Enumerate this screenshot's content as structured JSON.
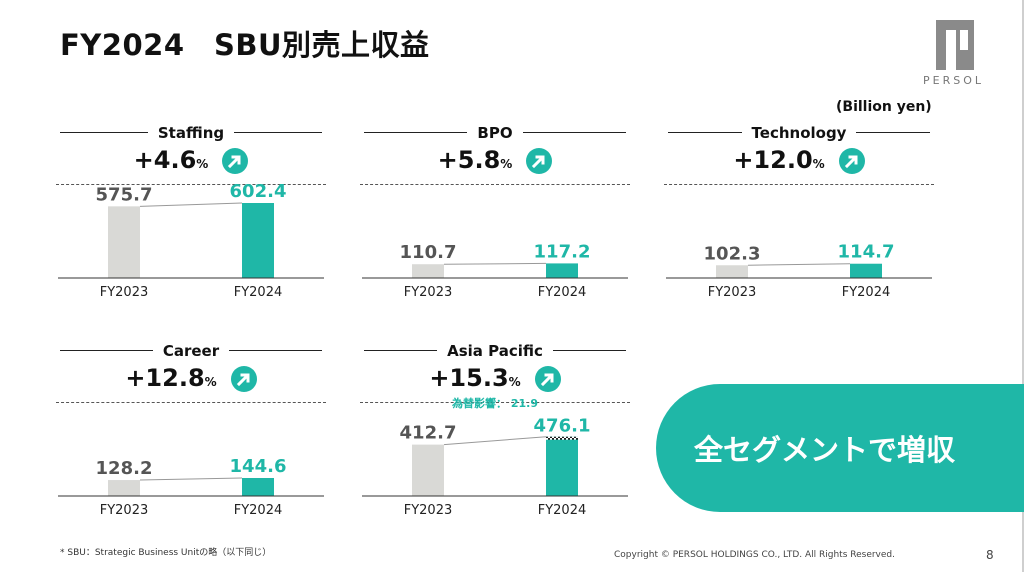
{
  "header": {
    "title": "FY2024　SBU別売上収益",
    "logo_text": "PERSOL",
    "unit": "(Billion yen)"
  },
  "colors": {
    "accent": "#1fb7a7",
    "prev_bar": "#d9d9d6",
    "text": "#111111"
  },
  "chart_data": [
    {
      "type": "bar",
      "title": "Staffing",
      "growth_value": "+4.6",
      "growth_unit": "%",
      "categories": [
        "FY2023",
        "FY2024"
      ],
      "values": [
        575.7,
        602.4
      ],
      "value_labels": [
        "575.7",
        "602.4"
      ],
      "ylim": [
        0,
        602.4
      ],
      "icon": "up-right-arrow-icon"
    },
    {
      "type": "bar",
      "title": "BPO",
      "growth_value": "+5.8",
      "growth_unit": "%",
      "categories": [
        "FY2023",
        "FY2024"
      ],
      "values": [
        110.7,
        117.2
      ],
      "value_labels": [
        "110.7",
        "117.2"
      ],
      "ylim": [
        0,
        602.4
      ],
      "icon": "up-right-arrow-icon"
    },
    {
      "type": "bar",
      "title": "Technology",
      "growth_value": "+12.0",
      "growth_unit": "%",
      "categories": [
        "FY2023",
        "FY2024"
      ],
      "values": [
        102.3,
        114.7
      ],
      "value_labels": [
        "102.3",
        "114.7"
      ],
      "ylim": [
        0,
        602.4
      ],
      "icon": "up-right-arrow-icon"
    },
    {
      "type": "bar",
      "title": "Career",
      "growth_value": "+12.8",
      "growth_unit": "%",
      "categories": [
        "FY2023",
        "FY2024"
      ],
      "values": [
        128.2,
        144.6
      ],
      "value_labels": [
        "128.2",
        "144.6"
      ],
      "ylim": [
        0,
        602.4
      ],
      "icon": "up-right-arrow-icon"
    },
    {
      "type": "bar",
      "title": "Asia Pacific",
      "growth_value": "+15.3",
      "growth_unit": "%",
      "categories": [
        "FY2023",
        "FY2024"
      ],
      "values": [
        412.7,
        476.1
      ],
      "value_labels": [
        "412.7",
        "476.1"
      ],
      "ylim": [
        0,
        602.4
      ],
      "annotation": "為替影響： 21.9",
      "fx_impact": 21.9,
      "icon": "up-right-arrow-icon"
    }
  ],
  "badge": {
    "text": "全セグメントで増収"
  },
  "footer": {
    "footnote": "* SBU：Strategic Business Unitの略（以下同じ）",
    "copyright": "Copyright © PERSOL HOLDINGS CO., LTD. All Rights Reserved.",
    "page_number": "8"
  }
}
